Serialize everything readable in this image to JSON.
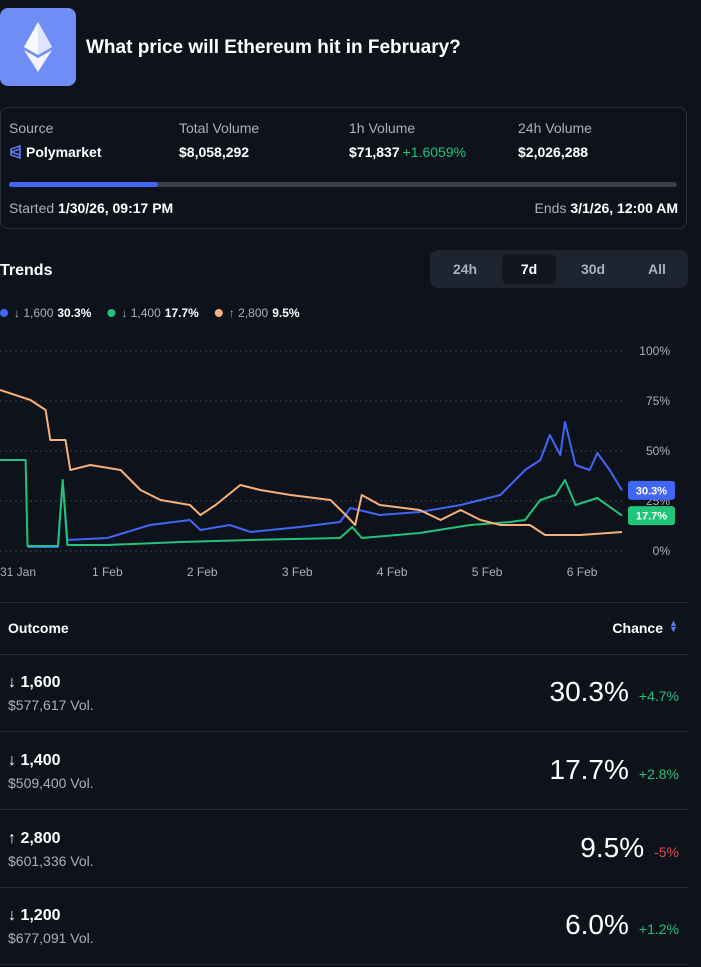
{
  "header": {
    "title": "What price will Ethereum hit in February?"
  },
  "stats": {
    "items": [
      {
        "label": "Source",
        "value": "Polymarket"
      },
      {
        "label": "Total Volume",
        "value": "$8,058,292"
      },
      {
        "label": "1h Volume",
        "value": "$71,837",
        "change": "+1.6059%"
      },
      {
        "label": "24h Volume",
        "value": "$2,026,288"
      }
    ],
    "started_label": "Started",
    "started": "1/30/26, 09:17 PM",
    "ends_label": "Ends",
    "ends": "3/1/26, 12:00 AM"
  },
  "trends": {
    "title": "Trends",
    "ranges": [
      "24h",
      "7d",
      "30d",
      "All"
    ],
    "active_range": 1
  },
  "chart_data": {
    "type": "line",
    "series": [
      {
        "name": "↓ 1,600",
        "color": "#4165f5",
        "chance": "30.3%",
        "end_label": true,
        "x": [
          0.16,
          0.48,
          0.53,
          0.58,
          1,
          1.45,
          1.87,
          1.98,
          2.29,
          2.51,
          3.03,
          3.45,
          3.56,
          3.87,
          4.29,
          4.72,
          5.14,
          5.4,
          5.56,
          5.66,
          5.77,
          5.82,
          5.93,
          6.08,
          6.16,
          6.29,
          6.42
        ],
        "values": [
          2,
          2,
          34.5,
          5.5,
          6.5,
          13,
          15.5,
          10.5,
          13,
          9.5,
          12,
          14.5,
          21.5,
          18,
          19.5,
          23,
          28,
          40.5,
          45.5,
          58,
          48,
          64.5,
          43,
          40.5,
          49,
          40.5,
          30.3
        ]
      },
      {
        "name": "↓ 1,400",
        "color": "#22c37a",
        "chance": "17.7%",
        "end_label": true,
        "x": [
          -0.13,
          0.14,
          0.16,
          0.48,
          0.53,
          0.58,
          1,
          1.77,
          2.51,
          3.45,
          3.58,
          3.68,
          4.29,
          4.82,
          5.24,
          5.4,
          5.56,
          5.72,
          5.82,
          5.93,
          6.16,
          6.42
        ],
        "values": [
          45.5,
          45.5,
          2.5,
          2.5,
          35.5,
          3,
          3,
          4.5,
          5.5,
          6.5,
          12,
          6.5,
          9,
          13,
          14.5,
          15.5,
          25.5,
          28,
          35.5,
          23,
          26.5,
          17.7
        ]
      },
      {
        "name": "↑ 2,800",
        "color": "#f5b07c",
        "chance": "9.5%",
        "end_label": false,
        "x": [
          -0.13,
          0.19,
          0.35,
          0.4,
          0.56,
          0.61,
          0.82,
          1.14,
          1.35,
          1.56,
          1.87,
          1.98,
          2.14,
          2.4,
          2.61,
          2.93,
          3.35,
          3.51,
          3.61,
          3.68,
          3.87,
          4.29,
          4.51,
          4.72,
          4.93,
          5.14,
          5.45,
          5.61,
          5.98,
          6.42
        ],
        "values": [
          80.5,
          75.5,
          70.5,
          55.5,
          55.5,
          40.5,
          43,
          40.5,
          30.5,
          25.5,
          23,
          18,
          23,
          33,
          30.5,
          28,
          25.5,
          18,
          13,
          28,
          23,
          20.5,
          15.5,
          20.5,
          15.5,
          13,
          13,
          8,
          8,
          9.5
        ]
      }
    ],
    "xlim": [
      -0.13,
      6.42
    ],
    "xticks": [
      {
        "value": 0,
        "label": "31 Jan"
      },
      {
        "value": 1,
        "label": "1 Feb"
      },
      {
        "value": 2,
        "label": "2 Feb"
      },
      {
        "value": 3,
        "label": "3 Feb"
      },
      {
        "value": 4,
        "label": "4 Feb"
      },
      {
        "value": 5,
        "label": "5 Feb"
      },
      {
        "value": 6,
        "label": "6 Feb"
      }
    ],
    "ylim": [
      0,
      100
    ],
    "yticks": [
      {
        "value": 0,
        "label": "0%"
      },
      {
        "value": 25,
        "label": "25%"
      },
      {
        "value": 50,
        "label": "50%"
      },
      {
        "value": 75,
        "label": "75%"
      },
      {
        "value": 100,
        "label": "100%"
      }
    ],
    "grid": true
  },
  "table": {
    "headers": [
      "Outcome",
      "Chance"
    ],
    "rows": [
      {
        "outcome": "↓ 1,600",
        "volume": "$577,617 Vol.",
        "chance": "30.3%",
        "change": "+4.7%"
      },
      {
        "outcome": "↓ 1,400",
        "volume": "$509,400 Vol.",
        "chance": "17.7%",
        "change": "+2.8%"
      },
      {
        "outcome": "↑ 2,800",
        "volume": "$601,336 Vol.",
        "chance": "9.5%",
        "change": "-5%"
      },
      {
        "outcome": "↓ 1,200",
        "volume": "$677,091 Vol.",
        "chance": "6.0%",
        "change": "+1.2%"
      }
    ]
  }
}
